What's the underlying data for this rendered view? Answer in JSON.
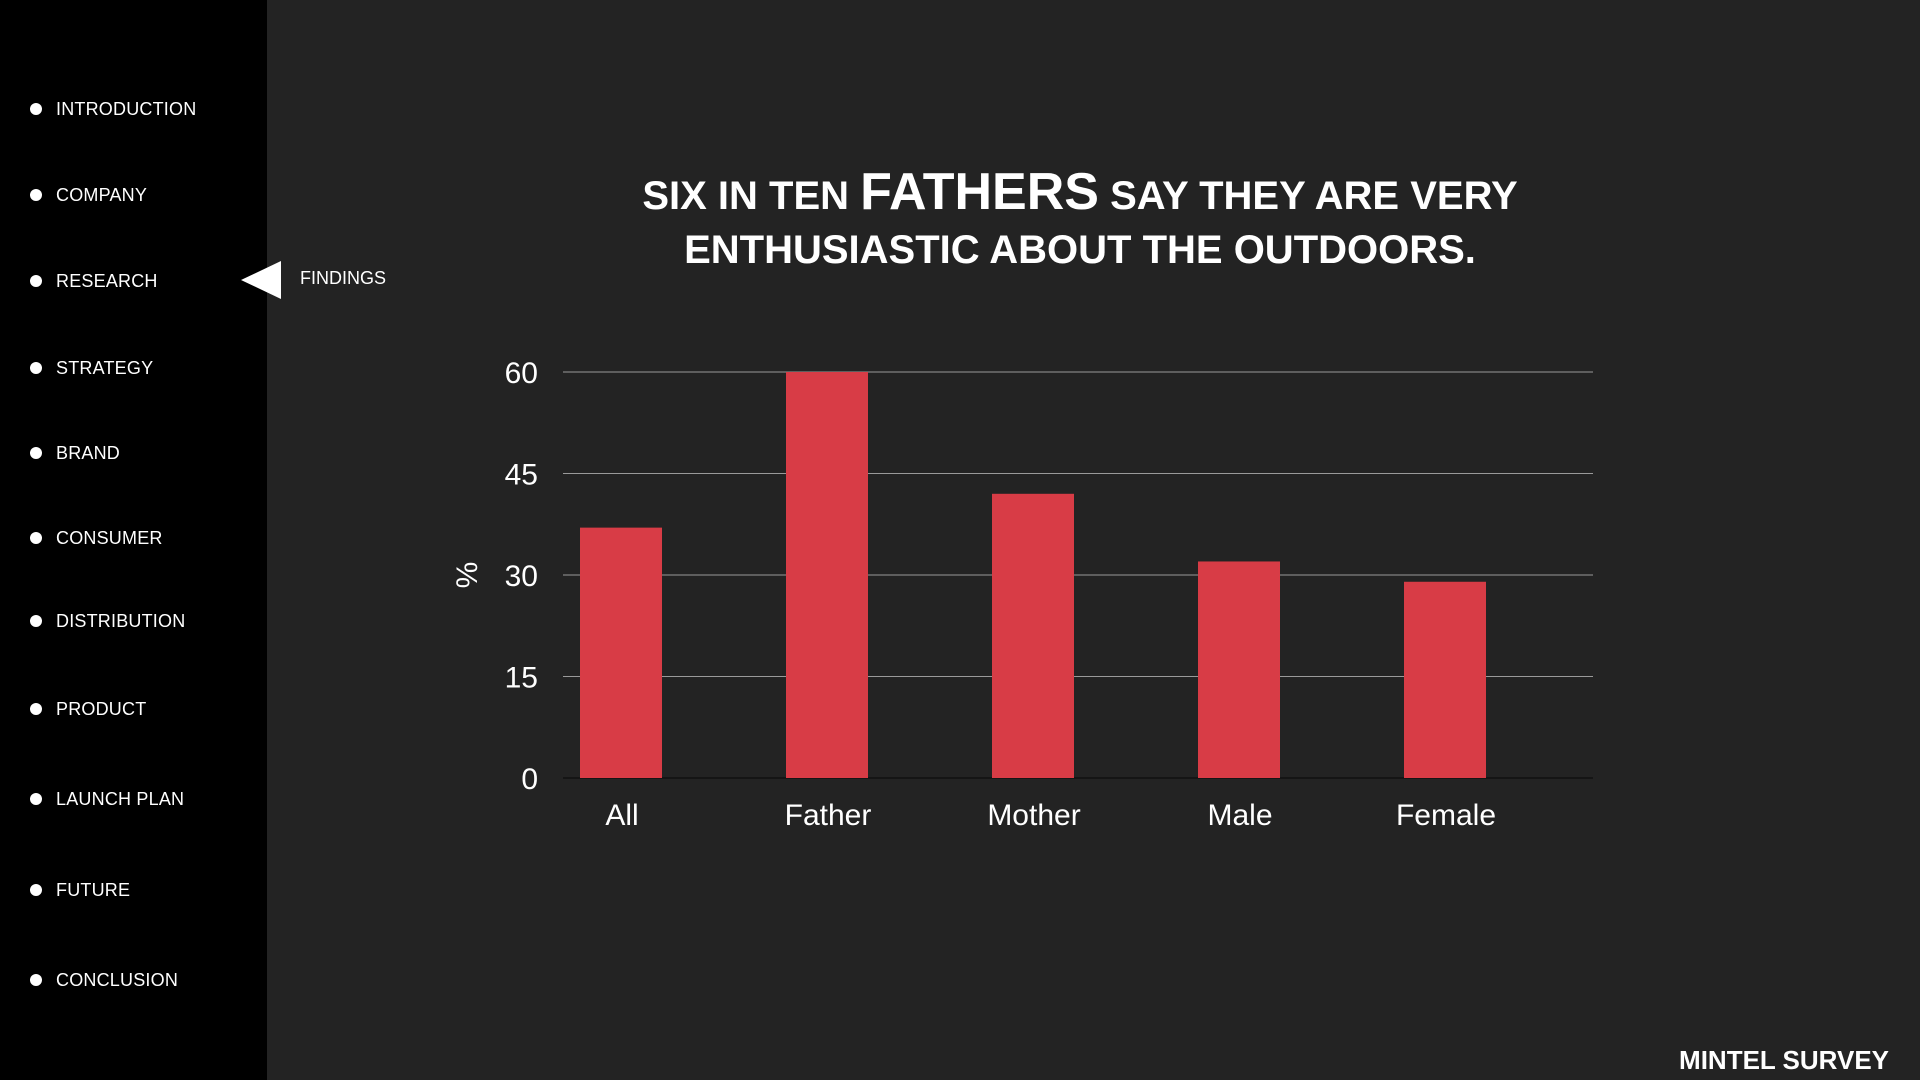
{
  "sidebar": {
    "items": [
      {
        "label": "INTRODUCTION"
      },
      {
        "label": "COMPANY"
      },
      {
        "label": "RESEARCH"
      },
      {
        "label": "STRATEGY"
      },
      {
        "label": "BRAND"
      },
      {
        "label": "CONSUMER"
      },
      {
        "label": "DISTRIBUTION"
      },
      {
        "label": "PRODUCT"
      },
      {
        "label": "LAUNCH PLAN"
      },
      {
        "label": "FUTURE"
      },
      {
        "label": "CONCLUSION"
      }
    ],
    "active_sub_label": "FINDINGS"
  },
  "headline": {
    "part1": "SIX IN TEN",
    "emphasis": "FATHERS",
    "part2": "SAY THEY ARE VERY",
    "line2": "ENTHUSIASTIC ABOUT THE OUTDOORS."
  },
  "footer": "MINTEL SURVEY",
  "colors": {
    "bar": "#d83c46",
    "background": "#232323",
    "sidebar": "#000000",
    "grid": "#9a9a9a",
    "text": "#ffffff"
  },
  "chart_data": {
    "type": "bar",
    "categories": [
      "All",
      "Father",
      "Mother",
      "Male",
      "Female"
    ],
    "values": [
      37,
      60,
      42,
      32,
      29
    ],
    "ylabel": "%",
    "xlabel": "",
    "ylim": [
      0,
      60
    ],
    "yticks": [
      0,
      15,
      30,
      45,
      60
    ],
    "grid": true,
    "legend": "none"
  }
}
